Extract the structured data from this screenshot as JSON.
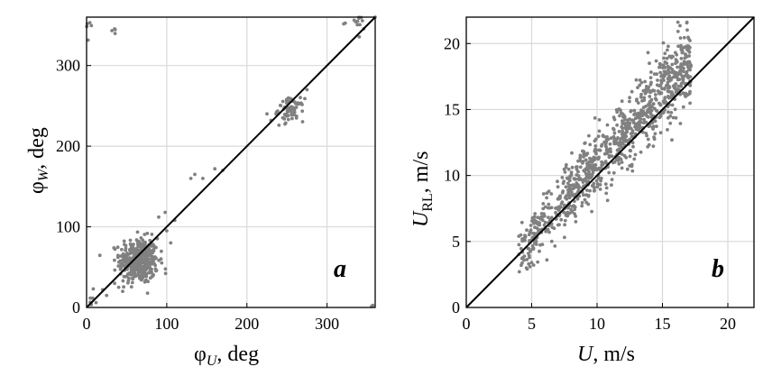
{
  "chart_data": [
    {
      "type": "scatter",
      "panel_label": "a",
      "xlabel": {
        "base": "φ",
        "sub": "U",
        "unit": ", deg"
      },
      "ylabel": {
        "base": "φ",
        "sub": "W",
        "unit": ", deg"
      },
      "xlim": [
        0,
        360
      ],
      "ylim": [
        0,
        360
      ],
      "xticks": [
        0,
        100,
        200,
        300
      ],
      "yticks": [
        0,
        100,
        200,
        300
      ],
      "grid": true,
      "reference_line": "y = x",
      "marker_color": "#808080",
      "clusters": [
        {
          "center": [
            65,
            58
          ],
          "spread": [
            12,
            14
          ],
          "count": 420
        },
        {
          "center": [
            255,
            245
          ],
          "spread": [
            8,
            7
          ],
          "count": 70
        },
        {
          "center": [
            3,
            345
          ],
          "spread": [
            4,
            8
          ],
          "count": 10
        },
        {
          "center": [
            30,
            345
          ],
          "spread": [
            6,
            6
          ],
          "count": 4
        },
        {
          "center": [
            340,
            352
          ],
          "spread": [
            14,
            6
          ],
          "count": 14
        },
        {
          "center": [
            355,
            5
          ],
          "spread": [
            4,
            8
          ],
          "count": 4
        },
        {
          "center": [
            5,
            15
          ],
          "spread": [
            4,
            8
          ],
          "count": 10
        }
      ],
      "points": [
        [
          90,
          112
        ],
        [
          98,
          118
        ],
        [
          110,
          108
        ],
        [
          130,
          160
        ],
        [
          135,
          165
        ],
        [
          145,
          160
        ],
        [
          160,
          172
        ],
        [
          20,
          22
        ],
        [
          25,
          15
        ],
        [
          35,
          30
        ],
        [
          40,
          25
        ],
        [
          45,
          20
        ],
        [
          100,
          95
        ],
        [
          105,
          80
        ],
        [
          170,
          170
        ],
        [
          225,
          240
        ],
        [
          230,
          232
        ],
        [
          240,
          226
        ],
        [
          275,
          270
        ],
        [
          360,
          360
        ]
      ]
    },
    {
      "type": "scatter",
      "panel_label": "b",
      "xlabel": {
        "base": "U",
        "sub": "",
        "unit": ", m/s"
      },
      "ylabel": {
        "base": "U",
        "sub": "RL",
        "unit": ", m/s"
      },
      "xlim": [
        0,
        22
      ],
      "ylim": [
        0,
        22
      ],
      "xticks": [
        0,
        5,
        10,
        15,
        20
      ],
      "yticks": [
        0,
        5,
        10,
        15,
        20
      ],
      "grid": true,
      "reference_line": "y = x",
      "marker_color": "#808080",
      "band": {
        "x_range": [
          4,
          17.2
        ],
        "count": 950,
        "relation": "y ≈ 1.1·x",
        "spread": 1.1
      },
      "points": [
        [
          17,
          19.8
        ],
        [
          16.5,
          19.3
        ],
        [
          16,
          18.5
        ],
        [
          15.8,
          19
        ],
        [
          15,
          17.6
        ],
        [
          4.2,
          3.2
        ],
        [
          4.6,
          3
        ],
        [
          5,
          3.4
        ],
        [
          14,
          18.5
        ],
        [
          16.8,
          16
        ]
      ]
    }
  ]
}
